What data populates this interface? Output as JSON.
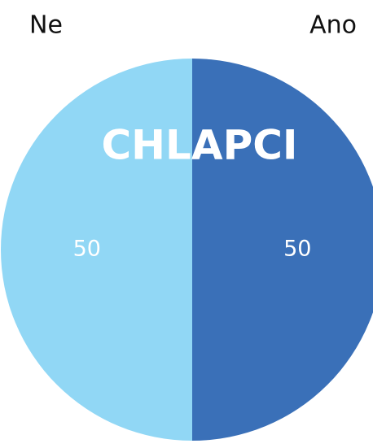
{
  "chart_data": {
    "type": "pie",
    "title": "CHLAPCI",
    "categories": [
      "Ano",
      "Ne"
    ],
    "values": [
      50,
      50
    ],
    "colors": [
      "#3a70b8",
      "#91d7f5"
    ]
  }
}
